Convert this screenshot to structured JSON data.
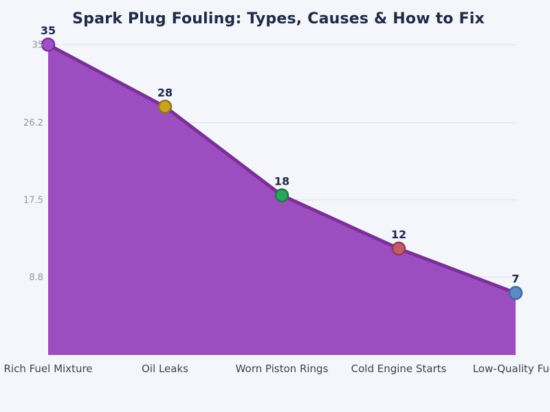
{
  "page": {
    "background": "#f4f6fb"
  },
  "chart_data": {
    "type": "area",
    "title": "Spark Plug Fouling: Types, Causes & How to Fix",
    "categories": [
      "Rich Fuel Mixture",
      "Oil Leaks",
      "Worn Piston Rings",
      "Cold Engine Starts",
      "Low-Quality Fuel"
    ],
    "values": [
      35,
      28,
      18,
      12,
      7
    ],
    "point_labels": [
      "35",
      "28",
      "18",
      "12",
      "7"
    ],
    "y_ticks": [
      "35",
      "26.2",
      "17.5",
      "8.8"
    ],
    "y_tick_values": [
      35,
      26.2,
      17.5,
      8.8
    ],
    "ylim": [
      0,
      35
    ],
    "xlabel": "",
    "ylabel": "",
    "grid": true,
    "legend": false,
    "colors": {
      "background": "#f4f6fb",
      "title": "#1f2a44",
      "area_fill": "#9c4ec0",
      "line": "#7a3097",
      "grid": "#e3e6eb",
      "tick_label": "#9097a3",
      "x_label": "#3b4252",
      "data_label": "#20294a",
      "points": [
        {
          "fill": "#a050cb",
          "stroke": "#7a3097"
        },
        {
          "fill": "#c9a227",
          "stroke": "#8f7319"
        },
        {
          "fill": "#2ca45f",
          "stroke": "#1d7a45"
        },
        {
          "fill": "#c25b6e",
          "stroke": "#943c4e"
        },
        {
          "fill": "#6089c4",
          "stroke": "#3e69a8"
        }
      ]
    }
  }
}
